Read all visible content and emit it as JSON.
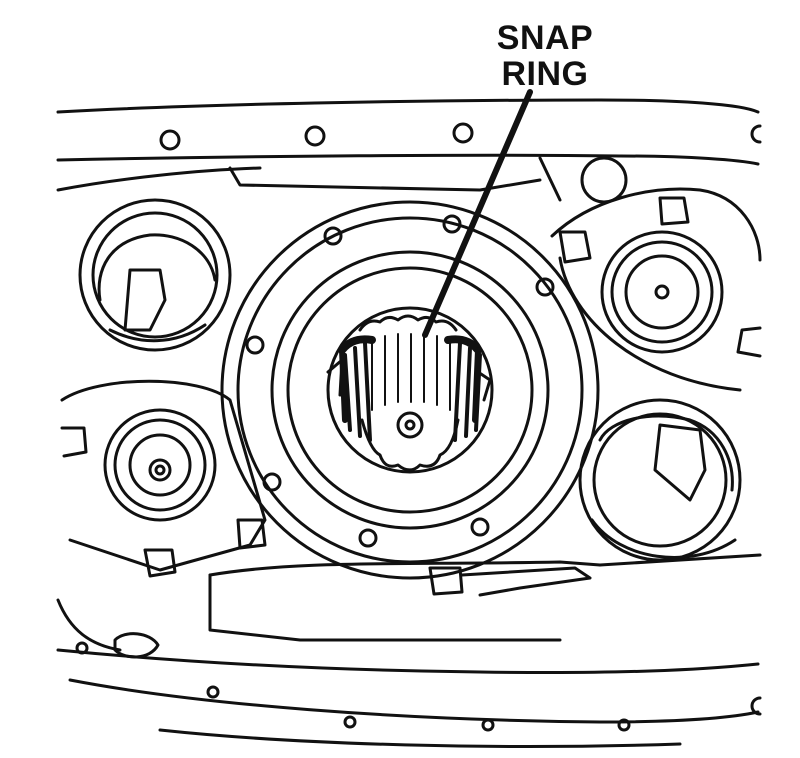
{
  "diagram": {
    "callouts": [
      {
        "line1": "SNAP",
        "line2": "RING"
      }
    ],
    "colors": {
      "ink": "#111111",
      "paper": "#ffffff"
    }
  }
}
